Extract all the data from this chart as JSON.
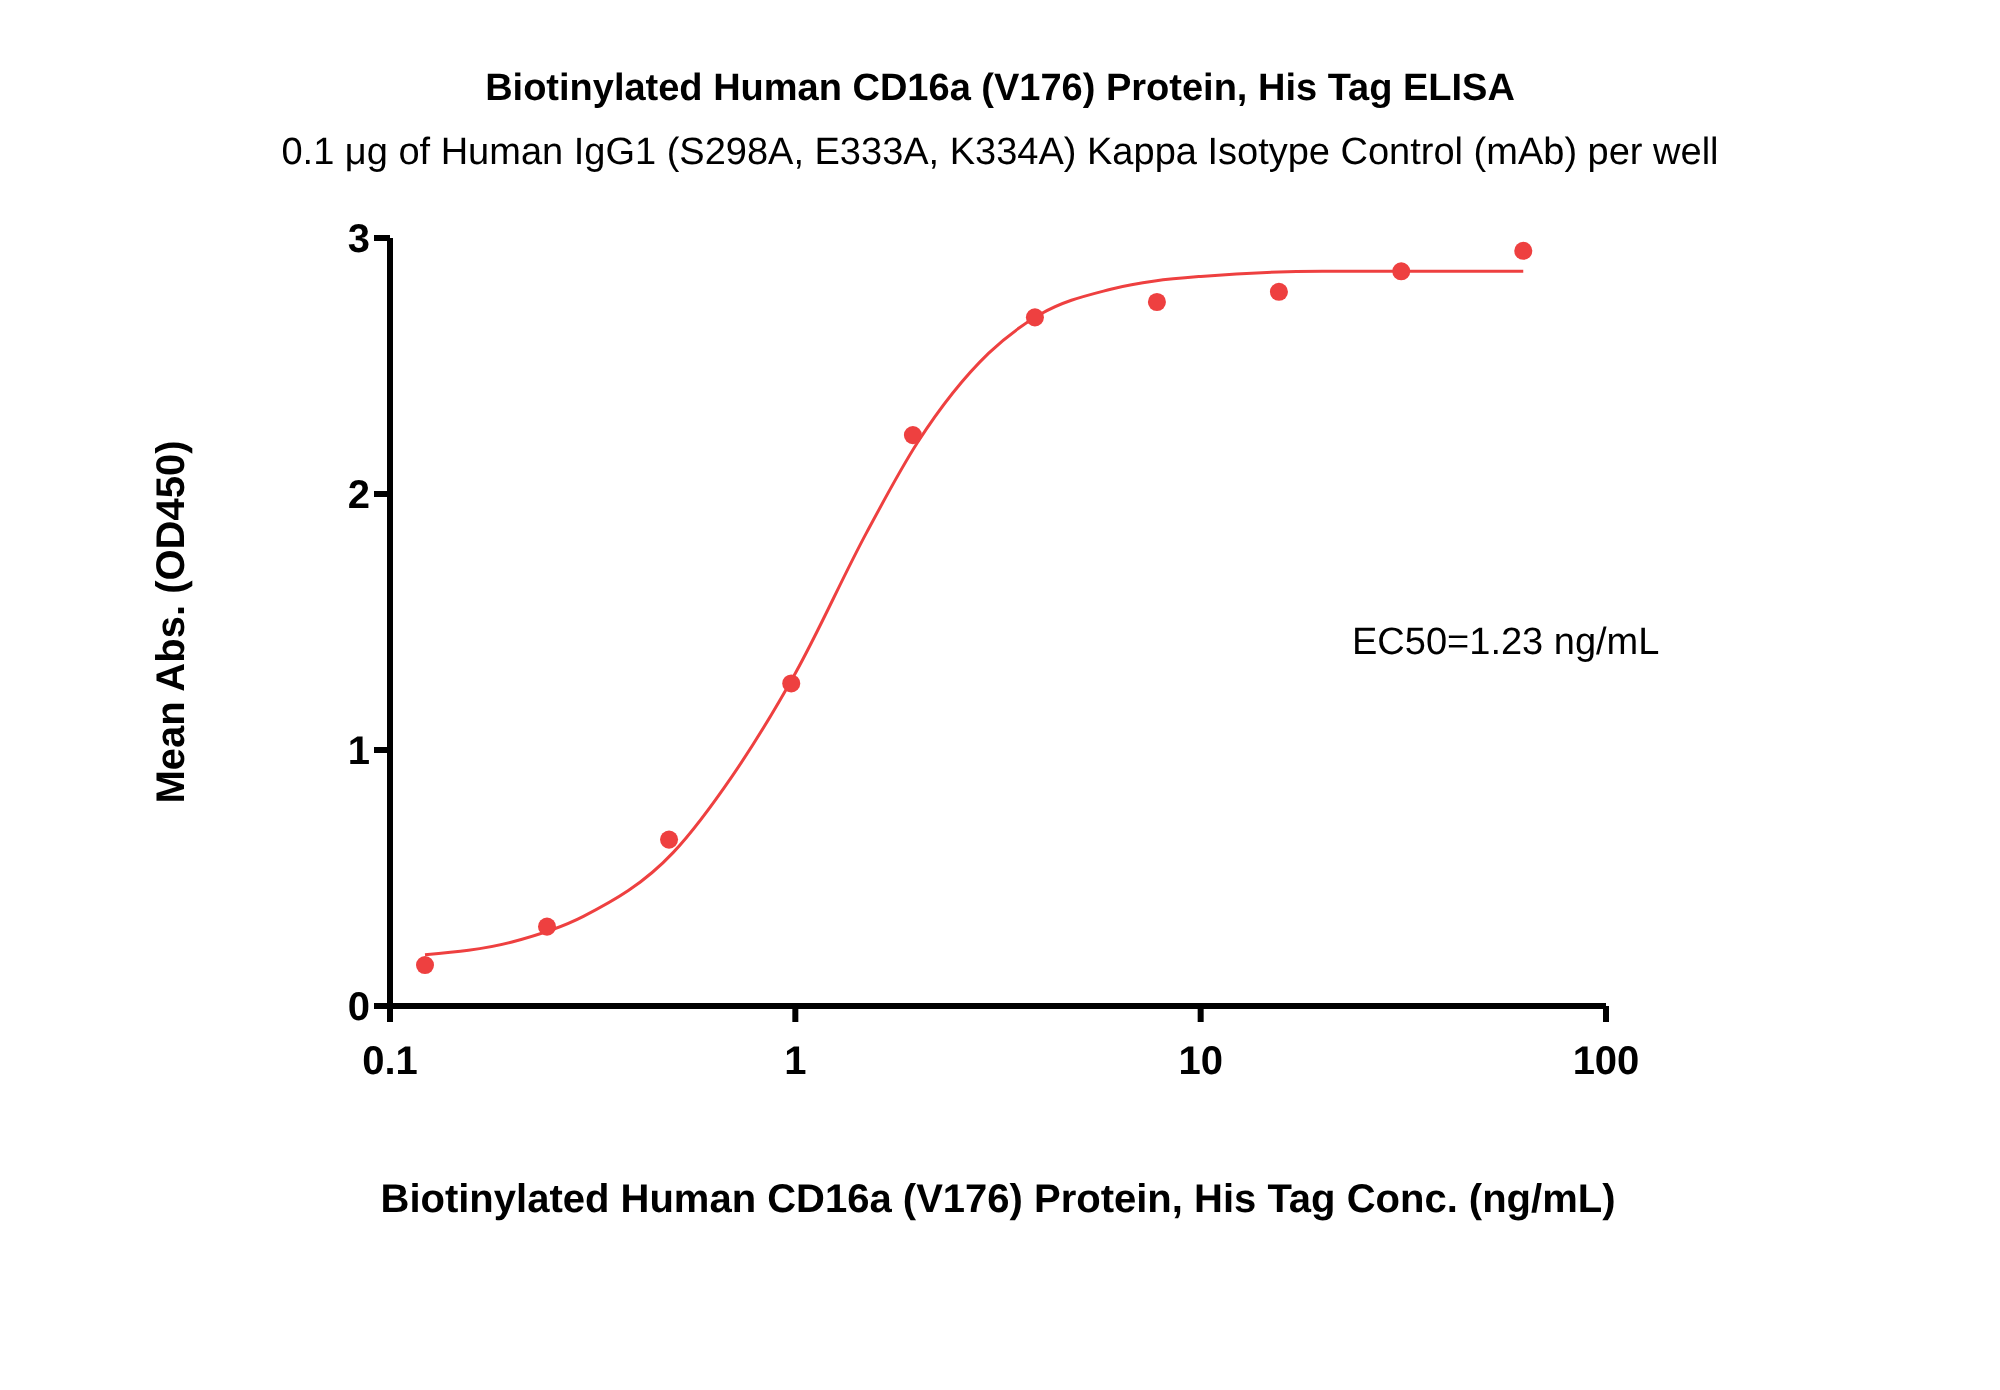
{
  "chart_data": {
    "type": "scatter",
    "title": "Biotinylated Human CD16a (V176) Protein, His Tag ELISA",
    "subtitle": "0.1 μg of Human IgG1 (S298A, E333A, K334A) Kappa Isotype Control (mAb) per well",
    "xlabel": "Biotinylated Human CD16a (V176) Protein, His Tag Conc. (ng/mL)",
    "ylabel": "Mean Abs. (OD450)",
    "log": "x",
    "xlim": [
      0.1,
      100
    ],
    "xticks": [
      0.1,
      1,
      10,
      100
    ],
    "ylim": [
      0,
      3
    ],
    "yticks": [
      0,
      1,
      2,
      3
    ],
    "grid": false,
    "marker": "circle",
    "x": [
      0.122,
      0.244,
      0.488,
      0.977,
      1.95,
      3.9,
      7.8,
      15.6,
      31.25,
      62.5
    ],
    "series": [
      {
        "color": "#ee4040",
        "values": [
          0.16,
          0.31,
          0.65,
          1.26,
          2.23,
          2.69,
          2.75,
          2.79,
          2.87,
          2.95
        ]
      },
      {
        "type": "line",
        "color": "#ee4040",
        "marker": "none",
        "line_style": "solid",
        "x": [
          0.122,
          0.2,
          0.3,
          0.5,
          0.7,
          1,
          1.5,
          2,
          3,
          4,
          6,
          10,
          20,
          62.5
        ],
        "values": [
          0.2,
          0.25,
          0.35,
          0.6,
          0.9,
          1.3,
          1.85,
          2.2,
          2.55,
          2.7,
          2.8,
          2.85,
          2.87,
          2.87
        ]
      }
    ],
    "annotations": [
      "EC50=1.23 ng/mL"
    ]
  }
}
